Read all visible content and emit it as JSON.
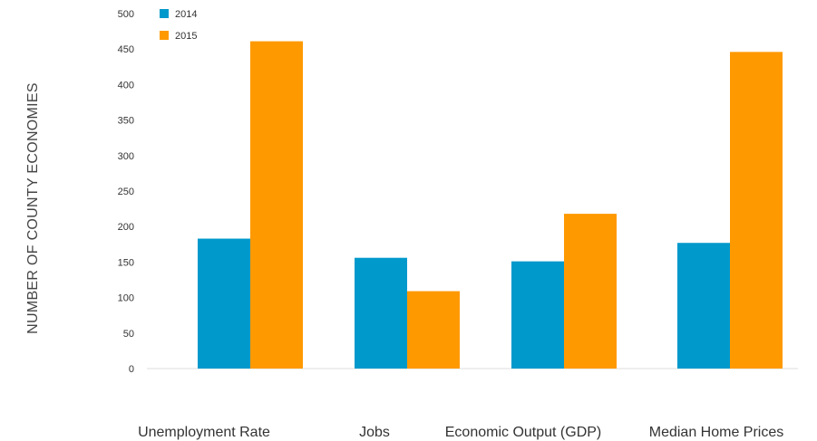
{
  "chart_data": {
    "type": "bar",
    "title": "",
    "xlabel": "",
    "ylabel": "NUMBER OF COUNTY ECONOMIES",
    "categories": [
      "Unemployment Rate",
      "Jobs",
      "Economic Output (GDP)",
      "Median Home Prices"
    ],
    "series": [
      {
        "name": "2014",
        "color": "#0099cc",
        "values": [
          183,
          156,
          151,
          177
        ]
      },
      {
        "name": "2015",
        "color": "#ff9900",
        "values": [
          461,
          109,
          218,
          446
        ]
      }
    ],
    "ylim": [
      0,
      500
    ],
    "yticks": [
      0,
      50,
      100,
      150,
      200,
      250,
      300,
      350,
      400,
      450,
      500
    ],
    "grid": false,
    "legend": "top-left"
  }
}
